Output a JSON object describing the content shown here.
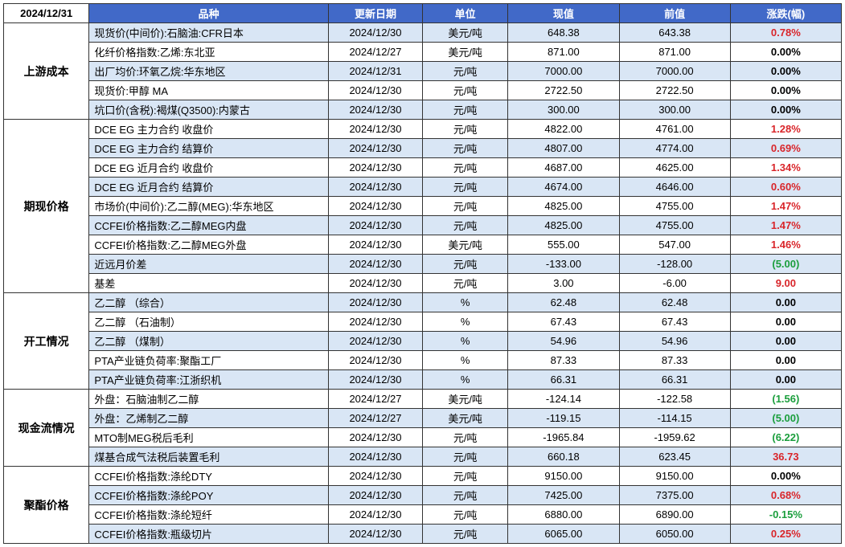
{
  "header": {
    "corner": "2024/12/31",
    "cols": [
      "品种",
      "更新日期",
      "单位",
      "现值",
      "前值",
      "涨跌(幅)"
    ]
  },
  "colors": {
    "header_bg": "#4169c8",
    "odd_row_bg": "#d9e6f5",
    "even_row_bg": "#ffffff",
    "positive": "#d9252a",
    "negative": "#1a9e3c",
    "neutral": "#000000",
    "border": "#333333"
  },
  "groups": [
    {
      "name": "上游成本",
      "rows": [
        {
          "item": "现货价(中间价):石脑油:CFR日本",
          "date": "2024/12/30",
          "unit": "美元/吨",
          "cur": "648.38",
          "prev": "643.38",
          "chg": "0.78%",
          "dir": "pos"
        },
        {
          "item": "化纤价格指数:乙烯:东北亚",
          "date": "2024/12/27",
          "unit": "美元/吨",
          "cur": "871.00",
          "prev": "871.00",
          "chg": "0.00%",
          "dir": "neu"
        },
        {
          "item": "出厂均价:环氧乙烷:华东地区",
          "date": "2024/12/31",
          "unit": "元/吨",
          "cur": "7000.00",
          "prev": "7000.00",
          "chg": "0.00%",
          "dir": "neu"
        },
        {
          "item": "现货价:甲醇 MA",
          "date": "2024/12/30",
          "unit": "元/吨",
          "cur": "2722.50",
          "prev": "2722.50",
          "chg": "0.00%",
          "dir": "neu"
        },
        {
          "item": "坑口价(含税):褐煤(Q3500):内蒙古",
          "date": "2024/12/30",
          "unit": "元/吨",
          "cur": "300.00",
          "prev": "300.00",
          "chg": "0.00%",
          "dir": "neu"
        }
      ]
    },
    {
      "name": "期现价格",
      "rows": [
        {
          "item": "DCE EG 主力合约 收盘价",
          "date": "2024/12/30",
          "unit": "元/吨",
          "cur": "4822.00",
          "prev": "4761.00",
          "chg": "1.28%",
          "dir": "pos"
        },
        {
          "item": "DCE EG 主力合约 结算价",
          "date": "2024/12/30",
          "unit": "元/吨",
          "cur": "4807.00",
          "prev": "4774.00",
          "chg": "0.69%",
          "dir": "pos"
        },
        {
          "item": "DCE EG 近月合约 收盘价",
          "date": "2024/12/30",
          "unit": "元/吨",
          "cur": "4687.00",
          "prev": "4625.00",
          "chg": "1.34%",
          "dir": "pos"
        },
        {
          "item": "DCE EG 近月合约 结算价",
          "date": "2024/12/30",
          "unit": "元/吨",
          "cur": "4674.00",
          "prev": "4646.00",
          "chg": "0.60%",
          "dir": "pos"
        },
        {
          "item": "市场价(中间价):乙二醇(MEG):华东地区",
          "date": "2024/12/30",
          "unit": "元/吨",
          "cur": "4825.00",
          "prev": "4755.00",
          "chg": "1.47%",
          "dir": "pos"
        },
        {
          "item": "CCFEI价格指数:乙二醇MEG内盘",
          "date": "2024/12/30",
          "unit": "元/吨",
          "cur": "4825.00",
          "prev": "4755.00",
          "chg": "1.47%",
          "dir": "pos"
        },
        {
          "item": "CCFEI价格指数:乙二醇MEG外盘",
          "date": "2024/12/30",
          "unit": "美元/吨",
          "cur": "555.00",
          "prev": "547.00",
          "chg": "1.46%",
          "dir": "pos"
        },
        {
          "item": "近远月价差",
          "date": "2024/12/30",
          "unit": "元/吨",
          "cur": "-133.00",
          "prev": "-128.00",
          "chg": "(5.00)",
          "dir": "neg"
        },
        {
          "item": "基差",
          "date": "2024/12/30",
          "unit": "元/吨",
          "cur": "3.00",
          "prev": "-6.00",
          "chg": "9.00",
          "dir": "pos"
        }
      ]
    },
    {
      "name": "开工情况",
      "rows": [
        {
          "item": "乙二醇 （综合）",
          "date": "2024/12/30",
          "unit": "%",
          "cur": "62.48",
          "prev": "62.48",
          "chg": "0.00",
          "dir": "neu"
        },
        {
          "item": "乙二醇 （石油制）",
          "date": "2024/12/30",
          "unit": "%",
          "cur": "67.43",
          "prev": "67.43",
          "chg": "0.00",
          "dir": "neu"
        },
        {
          "item": "乙二醇 （煤制）",
          "date": "2024/12/30",
          "unit": "%",
          "cur": "54.96",
          "prev": "54.96",
          "chg": "0.00",
          "dir": "neu"
        },
        {
          "item": "PTA产业链负荷率:聚酯工厂",
          "date": "2024/12/30",
          "unit": "%",
          "cur": "87.33",
          "prev": "87.33",
          "chg": "0.00",
          "dir": "neu"
        },
        {
          "item": "PTA产业链负荷率:江浙织机",
          "date": "2024/12/30",
          "unit": "%",
          "cur": "66.31",
          "prev": "66.31",
          "chg": "0.00",
          "dir": "neu"
        }
      ]
    },
    {
      "name": "现金流情况",
      "rows": [
        {
          "item": "外盘：石脑油制乙二醇",
          "date": "2024/12/27",
          "unit": "美元/吨",
          "cur": "-124.14",
          "prev": "-122.58",
          "chg": "(1.56)",
          "dir": "neg"
        },
        {
          "item": "外盘：乙烯制乙二醇",
          "date": "2024/12/27",
          "unit": "美元/吨",
          "cur": "-119.15",
          "prev": "-114.15",
          "chg": "(5.00)",
          "dir": "neg"
        },
        {
          "item": "MTO制MEG税后毛利",
          "date": "2024/12/30",
          "unit": "元/吨",
          "cur": "-1965.84",
          "prev": "-1959.62",
          "chg": "(6.22)",
          "dir": "neg"
        },
        {
          "item": "煤基合成气法税后装置毛利",
          "date": "2024/12/30",
          "unit": "元/吨",
          "cur": "660.18",
          "prev": "623.45",
          "chg": "36.73",
          "dir": "pos"
        }
      ]
    },
    {
      "name": "聚酯价格",
      "rows": [
        {
          "item": "CCFEI价格指数:涤纶DTY",
          "date": "2024/12/30",
          "unit": "元/吨",
          "cur": "9150.00",
          "prev": "9150.00",
          "chg": "0.00%",
          "dir": "neu"
        },
        {
          "item": "CCFEI价格指数:涤纶POY",
          "date": "2024/12/30",
          "unit": "元/吨",
          "cur": "7425.00",
          "prev": "7375.00",
          "chg": "0.68%",
          "dir": "pos"
        },
        {
          "item": "CCFEI价格指数:涤纶短纤",
          "date": "2024/12/30",
          "unit": "元/吨",
          "cur": "6880.00",
          "prev": "6890.00",
          "chg": "-0.15%",
          "dir": "neg"
        },
        {
          "item": "CCFEI价格指数:瓶级切片",
          "date": "2024/12/30",
          "unit": "元/吨",
          "cur": "6065.00",
          "prev": "6050.00",
          "chg": "0.25%",
          "dir": "pos"
        }
      ]
    }
  ]
}
